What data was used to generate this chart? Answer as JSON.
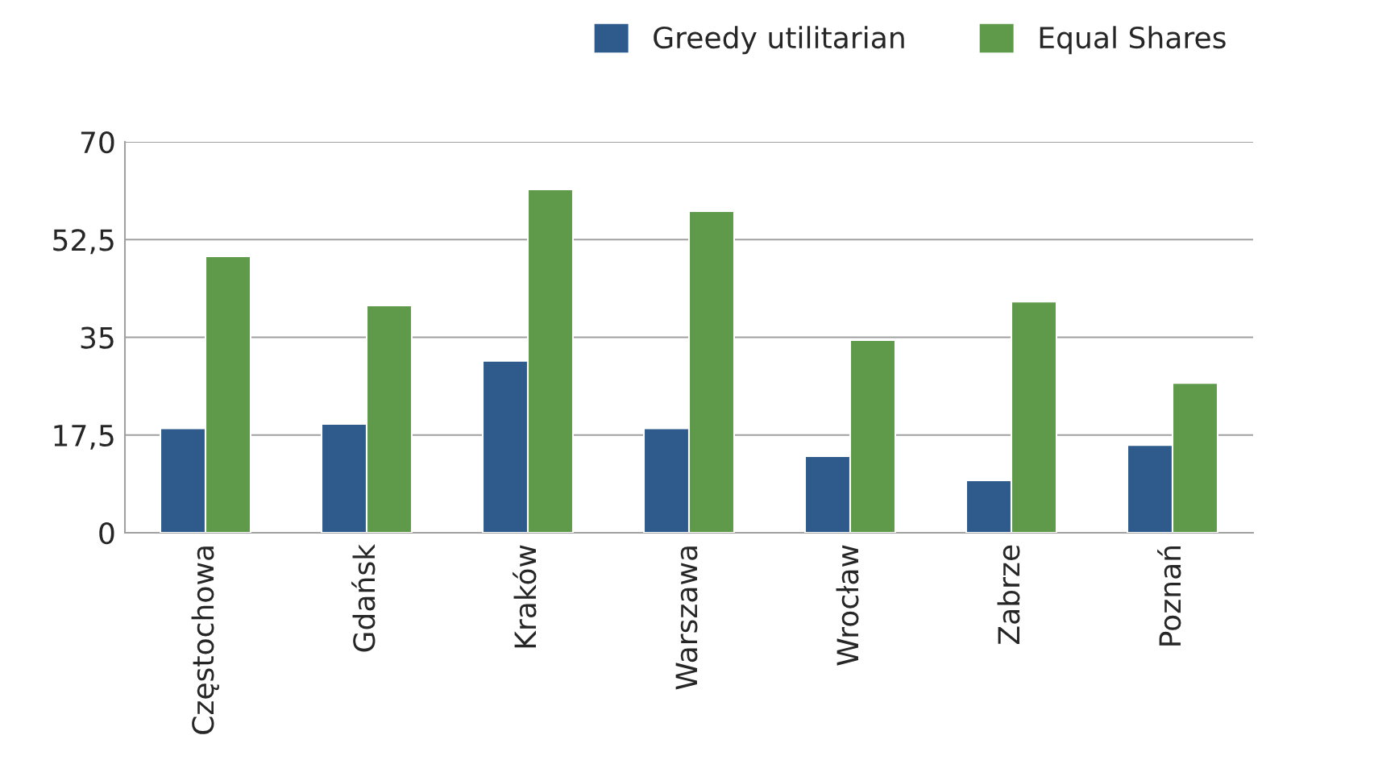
{
  "chart_data": {
    "type": "bar",
    "categories": [
      "Częstochowa",
      "Gdańsk",
      "Kraków",
      "Warszawa",
      "Wrocław",
      "Zabrze",
      "Poznań"
    ],
    "series": [
      {
        "name": "Greedy utilitarian",
        "color": "#2e5a8c",
        "values": [
          18.7,
          19.5,
          30.8,
          18.7,
          13.7,
          9.4,
          15.7
        ]
      },
      {
        "name": "Equal Shares",
        "color": "#5e9a4a",
        "values": [
          49.5,
          40.7,
          61.5,
          57.6,
          34.5,
          41.4,
          26.8
        ]
      }
    ],
    "ylim": [
      0,
      70
    ],
    "yticks": [
      0,
      {
        "value": 17.5,
        "label": "17,5"
      },
      35,
      {
        "value": 52.5,
        "label": "52,5"
      },
      70
    ],
    "grid": "y",
    "legend": "top right"
  }
}
